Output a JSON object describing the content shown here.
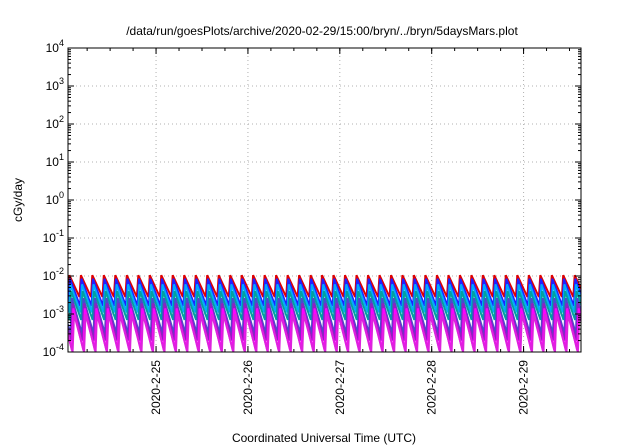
{
  "chart_data": {
    "type": "line",
    "title": "/data/run/goesPlots/archive/2020-02-29/15:00/bryn/../bryn/5daysMars.plot",
    "xlabel": "Coordinated Universal Time (UTC)",
    "ylabel": "cGy/day",
    "yscale": "log",
    "ylim": [
      0.0001,
      10000
    ],
    "xlim": [
      "2020-02-24 01:00",
      "2020-02-29 15:00"
    ],
    "y_ticks": [
      {
        "base": "10",
        "exp": "-4"
      },
      {
        "base": "10",
        "exp": "-3"
      },
      {
        "base": "10",
        "exp": "-2"
      },
      {
        "base": "10",
        "exp": "-1"
      },
      {
        "base": "10",
        "exp": "0"
      },
      {
        "base": "10",
        "exp": "1"
      },
      {
        "base": "10",
        "exp": "2"
      },
      {
        "base": "10",
        "exp": "3"
      },
      {
        "base": "10",
        "exp": "4"
      }
    ],
    "x_ticks": [
      "2020-2-25",
      "2020-2-26",
      "2020-2-27",
      "2020-2-28",
      "2020-2-29"
    ],
    "grid": true,
    "legend": "none",
    "period_hours": 3,
    "series": [
      {
        "color": "#e00000",
        "peak": 0.0105,
        "trough": 0.0028,
        "phase": 0.0
      },
      {
        "color": "#2020ff",
        "peak": 0.0085,
        "trough": 0.0016,
        "phase": 0.05
      },
      {
        "color": "#00aaff",
        "peak": 0.006,
        "trough": 0.0011,
        "phase": 0.1
      },
      {
        "color": "#00a0a0",
        "peak": 0.004,
        "trough": 0.0007,
        "phase": 0.15
      },
      {
        "color": "#4a4ad0",
        "peak": 0.0026,
        "trough": 0.0003,
        "phase": 0.22
      },
      {
        "color": "#9020c0",
        "peak": 0.0019,
        "trough": 0.0002,
        "phase": 0.28
      },
      {
        "color": "#ff00ff",
        "peak": 0.0014,
        "trough": 0.00011,
        "phase": 0.34
      },
      {
        "color": "#dd22dd",
        "peak": 0.001,
        "trough": 0.0001,
        "phase": 0.4
      }
    ]
  }
}
